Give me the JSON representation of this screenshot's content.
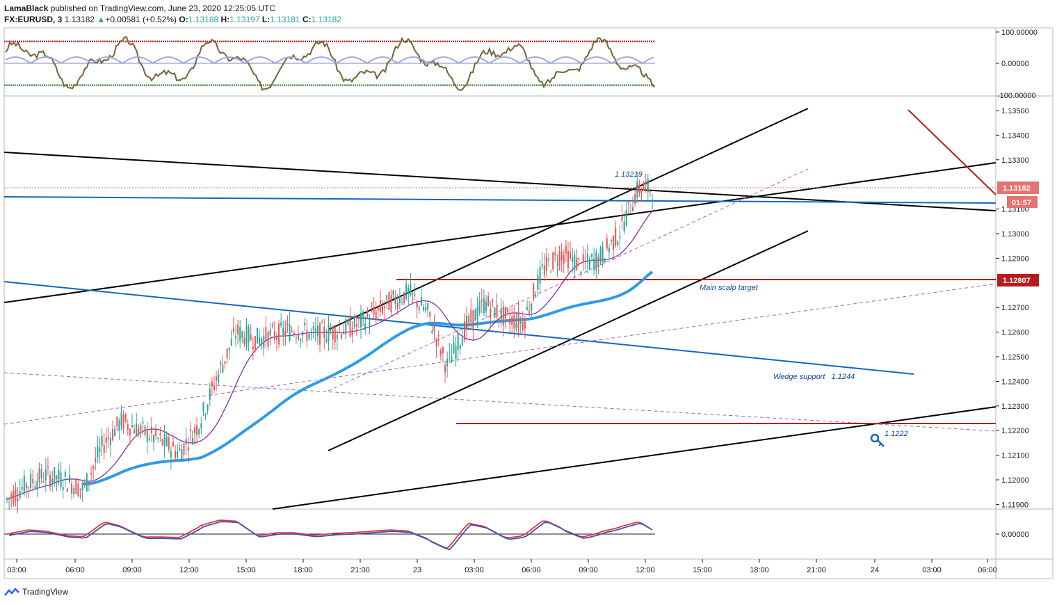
{
  "header": {
    "author": "LamaBlack",
    "published_text": " published on TradingView.com, June 23, 2020 12:25:05 UTC",
    "symbol": "FX:EURUSD, 3",
    "last": "1.13182",
    "arrow": "▲",
    "change": "+0.00581 (+0.52%)",
    "o_label": "O:",
    "o": "1.13188",
    "h_label": "H:",
    "h": "1.13197",
    "l_label": "L:",
    "l": "1.13181",
    "c_label": "C:",
    "c": "1.13182"
  },
  "colors": {
    "resistance": "#b71c1c",
    "trend_black": "#000000",
    "trend_blue": "#1565c0",
    "ma_thick": "#2e9be6",
    "ma_thin": "#7b1fa2",
    "dashed": "#9c5fc7",
    "candle_up": "#26a69a",
    "candle_down": "#ef5350",
    "osc_red": "#e53935",
    "osc_blue": "#3f51b5",
    "price_tag": "#e57373",
    "price_tag_dark": "#b71c1c"
  },
  "chart_data": {
    "type": "candlestick",
    "symbol": "FX:EURUSD",
    "interval": "3",
    "ylim": [
      1.1185,
      1.1357
    ],
    "y_ticks": [
      "1.13500",
      "1.13400",
      "1.13300",
      "1.13100",
      "1.13000",
      "1.12900",
      "1.12700",
      "1.12600",
      "1.12500",
      "1.12400",
      "1.12300",
      "1.12200",
      "1.12100",
      "1.12000",
      "1.11900"
    ],
    "x_ticks": [
      "03:00",
      "06:00",
      "09:00",
      "12:00",
      "15:00",
      "18:00",
      "21:00",
      "23",
      "03:00",
      "06:00",
      "09:00",
      "12:00",
      "15:00",
      "18:00",
      "21:00",
      "24",
      "03:00",
      "06:00"
    ],
    "price_labels": [
      {
        "value": 1.13182,
        "text": "1.13182",
        "countdown": "01:57"
      },
      {
        "value": 1.12807,
        "text": "1.12807"
      }
    ],
    "annotations": [
      {
        "text": "1.13219"
      },
      {
        "text": "Main scalp target"
      },
      {
        "text": "Wedge support   1.1244"
      },
      {
        "text": "1.1222"
      }
    ],
    "levels": {
      "main_scalp_target": 1.12807,
      "wedge_support": 1.1244,
      "key_level": 1.1222,
      "high_marker": 1.13219
    },
    "price_series": {
      "x_hours": [
        0,
        1,
        2,
        3,
        4,
        5,
        6,
        7,
        8,
        9,
        10,
        11,
        12,
        13,
        14,
        15,
        16,
        17,
        18,
        19,
        20,
        21,
        22,
        23,
        24,
        25,
        26,
        27,
        28,
        29,
        30,
        31,
        32,
        33
      ],
      "close": [
        1.1192,
        1.1198,
        1.1202,
        1.12,
        1.1196,
        1.1214,
        1.1224,
        1.122,
        1.1216,
        1.1211,
        1.1222,
        1.1242,
        1.126,
        1.1257,
        1.1259,
        1.1261,
        1.1259,
        1.126,
        1.1262,
        1.1266,
        1.1272,
        1.1276,
        1.1268,
        1.1246,
        1.1262,
        1.1272,
        1.1266,
        1.1264,
        1.1285,
        1.1292,
        1.1287,
        1.129,
        1.13,
        1.13182
      ]
    },
    "top_oscillator": {
      "y_ticks": [
        "100.00000",
        "0.00000",
        "-100.00000"
      ],
      "upper_band": 70,
      "lower_band": -70
    },
    "bottom_oscillator": {
      "y_ticks": [
        "0.00000"
      ]
    }
  },
  "footer": {
    "brand": "TradingView"
  }
}
